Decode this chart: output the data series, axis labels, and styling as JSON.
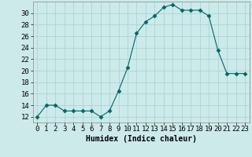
{
  "x": [
    0,
    1,
    2,
    3,
    4,
    5,
    6,
    7,
    8,
    9,
    10,
    11,
    12,
    13,
    14,
    15,
    16,
    17,
    18,
    19,
    20,
    21,
    22,
    23
  ],
  "y": [
    12,
    14,
    14,
    13,
    13,
    13,
    13,
    12,
    13,
    16.5,
    20.5,
    26.5,
    28.5,
    29.5,
    31,
    31.5,
    30.5,
    30.5,
    30.5,
    29.5,
    23.5,
    19.5,
    19.5,
    19.5
  ],
  "line_color": "#006666",
  "marker": "D",
  "marker_size": 2.5,
  "background_color": "#cceaea",
  "grid_color": "#aad4d4",
  "xlabel": "Humidex (Indice chaleur)",
  "xlim": [
    -0.5,
    23.5
  ],
  "ylim": [
    11,
    32
  ],
  "yticks": [
    12,
    14,
    16,
    18,
    20,
    22,
    24,
    26,
    28,
    30
  ],
  "xticks": [
    0,
    1,
    2,
    3,
    4,
    5,
    6,
    7,
    8,
    9,
    10,
    11,
    12,
    13,
    14,
    15,
    16,
    17,
    18,
    19,
    20,
    21,
    22,
    23
  ],
  "xlabel_fontsize": 7,
  "tick_fontsize": 6.5
}
